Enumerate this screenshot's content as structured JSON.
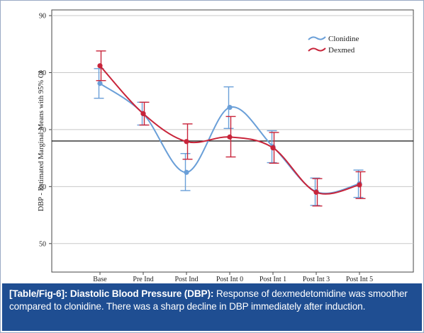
{
  "chart_data": {
    "type": "line",
    "title": "",
    "xlabel": "",
    "ylabel": "DBP - Estimated Marginal Means with 95% CI",
    "categories": [
      "Base",
      "Pre Ind",
      "Post Ind",
      "Post Int 0",
      "Post Int 1",
      "Post Int 3",
      "Post Int 5"
    ],
    "ylim": [
      45,
      91
    ],
    "yticks": [
      50,
      60,
      70,
      80,
      90
    ],
    "reference_line": 68,
    "grid": "horizontal",
    "legend_position": "top-right",
    "smoothed": true,
    "series": [
      {
        "name": "Clonidine",
        "color": "#6a9fd8",
        "values": [
          78.1,
          72.8,
          62.5,
          73.9,
          67.0,
          59.1,
          60.5
        ],
        "ci_low": [
          75.5,
          70.8,
          59.3,
          70.2,
          64.2,
          56.7,
          58.1
        ],
        "ci_high": [
          80.7,
          74.8,
          65.8,
          77.5,
          69.8,
          61.5,
          62.9
        ]
      },
      {
        "name": "Dexmed",
        "color": "#c8243a",
        "values": [
          81.2,
          72.8,
          67.9,
          68.7,
          66.8,
          59.0,
          60.3
        ],
        "ci_low": [
          78.6,
          70.8,
          64.8,
          65.2,
          64.1,
          56.6,
          57.9
        ],
        "ci_high": [
          83.8,
          74.8,
          71.0,
          72.3,
          69.5,
          61.4,
          62.6
        ]
      }
    ]
  },
  "caption": {
    "tag": "[Table/Fig-6]:",
    "title": "Diastolic Blood Pressure (DBP):",
    "text": "Response of dexmedetomidine was smoother compared to clonidine. There was a sharp decline in DBP immediately after induction."
  },
  "colors": {
    "caption_bg": "#1f4e92",
    "reference_line": "#111111",
    "grid": "#c8c8c8"
  }
}
